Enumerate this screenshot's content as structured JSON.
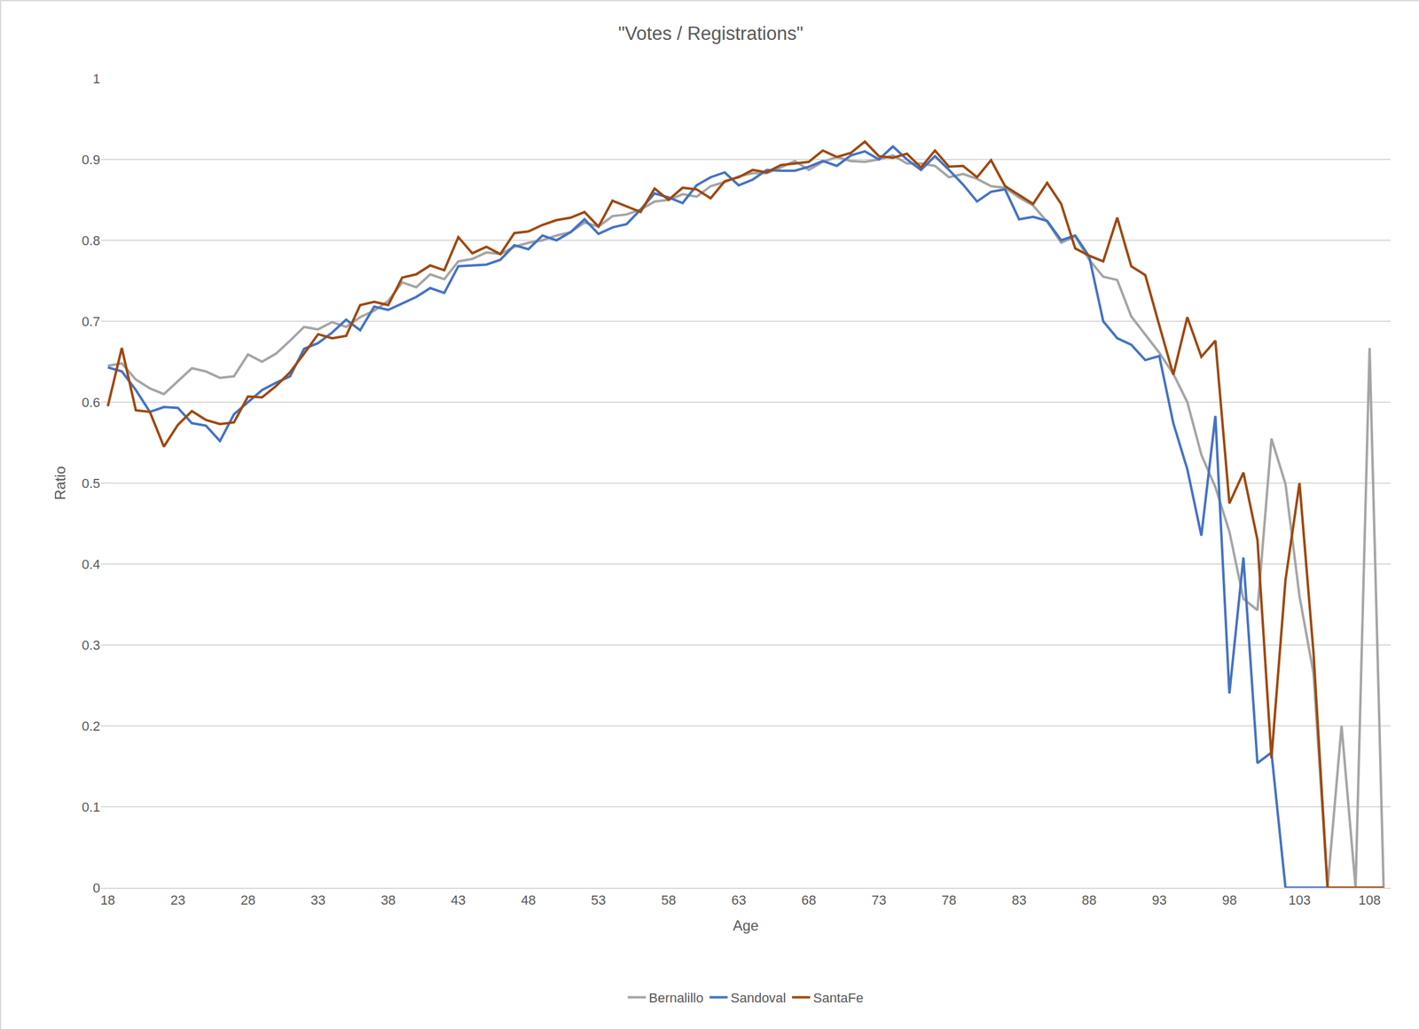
{
  "chart_data": {
    "type": "line",
    "title": "\"Votes / Registrations\"",
    "x_label": "Age",
    "y_label": "Ratio",
    "x": [
      18,
      19,
      20,
      21,
      22,
      23,
      24,
      25,
      26,
      27,
      28,
      29,
      30,
      31,
      32,
      33,
      34,
      35,
      36,
      37,
      38,
      39,
      40,
      41,
      42,
      43,
      44,
      45,
      46,
      47,
      48,
      49,
      50,
      51,
      52,
      53,
      54,
      55,
      56,
      57,
      58,
      59,
      60,
      61,
      62,
      63,
      64,
      65,
      66,
      67,
      68,
      69,
      70,
      71,
      72,
      73,
      74,
      75,
      76,
      77,
      78,
      79,
      80,
      81,
      82,
      83,
      84,
      85,
      86,
      87,
      88,
      89,
      90,
      91,
      92,
      93,
      94,
      95,
      96,
      97,
      98,
      99,
      100,
      101,
      102,
      103,
      104,
      105,
      106,
      107,
      108,
      109
    ],
    "series": [
      {
        "name": "Bernalillo",
        "color": "#A5A5A5",
        "values": [
          0.645,
          0.648,
          0.628,
          0.617,
          0.61,
          0.626,
          0.642,
          0.638,
          0.63,
          0.632,
          0.659,
          0.65,
          0.66,
          0.676,
          0.693,
          0.69,
          0.699,
          0.693,
          0.705,
          0.713,
          0.725,
          0.748,
          0.742,
          0.758,
          0.752,
          0.774,
          0.777,
          0.785,
          0.783,
          0.792,
          0.797,
          0.8,
          0.806,
          0.81,
          0.822,
          0.817,
          0.83,
          0.832,
          0.838,
          0.848,
          0.85,
          0.857,
          0.854,
          0.867,
          0.872,
          0.879,
          0.883,
          0.883,
          0.89,
          0.898,
          0.887,
          0.897,
          0.903,
          0.898,
          0.897,
          0.9,
          0.905,
          0.895,
          0.895,
          0.892,
          0.878,
          0.882,
          0.876,
          0.867,
          0.865,
          0.853,
          0.843,
          0.823,
          0.797,
          0.805,
          0.776,
          0.755,
          0.751,
          0.706,
          0.683,
          0.661,
          0.635,
          0.6,
          0.535,
          0.495,
          0.44,
          0.357,
          0.343,
          0.555,
          0.499,
          0.36,
          0.265,
          0,
          0.2,
          0,
          0.667,
          0
        ]
      },
      {
        "name": "Sandoval",
        "color": "#4472C4",
        "values": [
          0.643,
          0.638,
          0.615,
          0.588,
          0.594,
          0.593,
          0.574,
          0.571,
          0.552,
          0.585,
          0.6,
          0.615,
          0.624,
          0.632,
          0.666,
          0.673,
          0.686,
          0.702,
          0.689,
          0.718,
          0.714,
          0.722,
          0.73,
          0.741,
          0.735,
          0.768,
          0.769,
          0.77,
          0.776,
          0.794,
          0.789,
          0.806,
          0.8,
          0.81,
          0.826,
          0.808,
          0.816,
          0.82,
          0.838,
          0.858,
          0.853,
          0.846,
          0.868,
          0.878,
          0.884,
          0.868,
          0.875,
          0.887,
          0.886,
          0.886,
          0.891,
          0.898,
          0.892,
          0.905,
          0.91,
          0.9,
          0.916,
          0.9,
          0.887,
          0.904,
          0.887,
          0.869,
          0.848,
          0.86,
          0.863,
          0.826,
          0.829,
          0.824,
          0.8,
          0.806,
          0.78,
          0.7,
          0.679,
          0.671,
          0.652,
          0.657,
          0.574,
          0.517,
          0.435,
          0.583,
          0.24,
          0.408,
          0.154,
          0.167,
          0,
          0,
          0,
          0,
          0,
          0,
          0,
          0
        ]
      },
      {
        "name": "SantaFe",
        "color": "#9E480E",
        "values": [
          0.595,
          0.667,
          0.59,
          0.588,
          0.545,
          0.572,
          0.589,
          0.578,
          0.573,
          0.575,
          0.607,
          0.606,
          0.62,
          0.637,
          0.66,
          0.684,
          0.679,
          0.682,
          0.72,
          0.724,
          0.72,
          0.754,
          0.758,
          0.769,
          0.763,
          0.804,
          0.784,
          0.792,
          0.783,
          0.809,
          0.811,
          0.819,
          0.825,
          0.828,
          0.835,
          0.817,
          0.849,
          0.842,
          0.835,
          0.864,
          0.85,
          0.865,
          0.863,
          0.852,
          0.873,
          0.878,
          0.887,
          0.884,
          0.893,
          0.895,
          0.897,
          0.911,
          0.903,
          0.908,
          0.922,
          0.904,
          0.902,
          0.907,
          0.89,
          0.911,
          0.891,
          0.892,
          0.878,
          0.899,
          0.867,
          0.856,
          0.845,
          0.871,
          0.845,
          0.79,
          0.781,
          0.774,
          0.828,
          0.768,
          0.757,
          0.695,
          0.634,
          0.705,
          0.656,
          0.676,
          0.475,
          0.513,
          0.43,
          0.16,
          0.38,
          0.5,
          0.29,
          0,
          0,
          0,
          0,
          0
        ]
      }
    ],
    "xlim": [
      17.5,
      109.5
    ],
    "xticks": [
      18,
      23,
      28,
      33,
      38,
      43,
      48,
      53,
      58,
      63,
      68,
      73,
      78,
      83,
      88,
      93,
      98,
      103,
      108
    ],
    "ylim": [
      0,
      1
    ],
    "yticks": [
      0,
      0.1,
      0.2,
      0.3,
      0.4,
      0.5,
      0.6,
      0.7,
      0.8,
      0.9,
      1
    ],
    "grid": true,
    "legend": "bottom"
  }
}
